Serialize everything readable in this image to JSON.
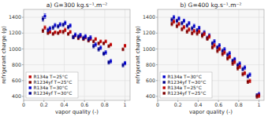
{
  "chart_data": [
    {
      "type": "scatter",
      "title": "a) G=300 kg.s⁻¹.m⁻²",
      "x_label": "vapor quality (-)",
      "y_label": "refrigerant charge (g)",
      "xlim": [
        0,
        1.05
      ],
      "ylim": [
        350,
        1500
      ],
      "xticks": [
        0,
        0.2,
        0.4,
        0.6,
        0.8,
        1
      ],
      "yticks": [
        400,
        600,
        800,
        1000,
        1200,
        1400
      ],
      "grid": true,
      "legend": "lower left",
      "marker": "square",
      "series": [
        {
          "name": "R134a T=25°C",
          "color": "#c00000",
          "x": [
            0.21,
            0.26,
            0.31,
            0.36,
            0.41,
            0.46,
            0.51,
            0.56,
            0.61,
            0.66,
            0.71,
            0.76,
            0.81,
            0.86,
            1.0
          ],
          "values": [
            1270,
            1215,
            1210,
            1220,
            1240,
            1215,
            1170,
            1160,
            1145,
            1125,
            1125,
            1095,
            1095,
            1055,
            1040
          ],
          "errors": [
            22,
            18,
            18,
            18,
            22,
            18,
            18,
            18,
            18,
            18,
            18,
            18,
            18,
            18,
            18
          ]
        },
        {
          "name": "R1234yf T=25°C",
          "color": "#7f0000",
          "x": [
            0.19,
            0.24,
            0.29,
            0.34,
            0.39,
            0.44,
            0.49,
            0.54,
            0.59,
            0.64,
            0.69,
            0.74,
            0.79,
            0.84,
            0.98
          ],
          "values": [
            1230,
            1200,
            1190,
            1200,
            1215,
            1190,
            1150,
            1135,
            1125,
            1105,
            1095,
            1070,
            1070,
            1035,
            995
          ],
          "errors": [
            22,
            18,
            18,
            18,
            22,
            18,
            18,
            18,
            18,
            18,
            18,
            18,
            18,
            18,
            18
          ]
        },
        {
          "name": "R134a T=30°C",
          "color": "#0000cc",
          "x": [
            0.21,
            0.26,
            0.31,
            0.36,
            0.41,
            0.46,
            0.51,
            0.56,
            0.61,
            0.66,
            0.71,
            0.76,
            0.81,
            0.86,
            1.0
          ],
          "values": [
            1415,
            1260,
            1300,
            1310,
            1330,
            1295,
            1180,
            1175,
            1160,
            1145,
            1055,
            1015,
            955,
            845,
            820
          ],
          "errors": [
            28,
            22,
            22,
            22,
            22,
            22,
            22,
            22,
            22,
            22,
            22,
            22,
            22,
            22,
            22
          ]
        },
        {
          "name": "R1234yf T=30°C",
          "color": "#00008b",
          "x": [
            0.19,
            0.24,
            0.29,
            0.34,
            0.39,
            0.44,
            0.49,
            0.54,
            0.59,
            0.64,
            0.69,
            0.74,
            0.79,
            0.84,
            0.98
          ],
          "values": [
            1380,
            1240,
            1270,
            1285,
            1305,
            1275,
            1150,
            1155,
            1140,
            1125,
            1035,
            995,
            940,
            830,
            795
          ],
          "errors": [
            28,
            22,
            22,
            22,
            22,
            22,
            22,
            22,
            22,
            22,
            22,
            22,
            22,
            22,
            22
          ]
        }
      ]
    },
    {
      "type": "scatter",
      "title": "b) G=400 kg.s⁻¹.m⁻²",
      "x_label": "vapor quality (-)",
      "y_label": "refrigerant charge (g)",
      "xlim": [
        0,
        1.05
      ],
      "ylim": [
        350,
        1500
      ],
      "xticks": [
        0,
        0.2,
        0.4,
        0.6,
        0.8,
        1
      ],
      "yticks": [
        400,
        600,
        800,
        1000,
        1200,
        1400
      ],
      "grid": true,
      "legend": "lower left",
      "marker": "square",
      "series": [
        {
          "name": "R134a T=30°C",
          "color": "#0000cc",
          "x": [
            0.16,
            0.21,
            0.26,
            0.31,
            0.36,
            0.41,
            0.46,
            0.51,
            0.56,
            0.61,
            0.66,
            0.71,
            0.76,
            0.81,
            0.86,
            0.91,
            1.0
          ],
          "values": [
            1400,
            1385,
            1355,
            1325,
            1290,
            1265,
            1210,
            1170,
            1095,
            1045,
            995,
            945,
            870,
            815,
            765,
            675,
            428
          ],
          "errors": [
            22,
            22,
            22,
            22,
            22,
            22,
            22,
            22,
            22,
            22,
            22,
            22,
            22,
            22,
            22,
            22,
            22
          ]
        },
        {
          "name": "R1234yf T=30°C",
          "color": "#00008b",
          "x": [
            0.14,
            0.19,
            0.24,
            0.29,
            0.34,
            0.39,
            0.44,
            0.49,
            0.54,
            0.59,
            0.64,
            0.69,
            0.74,
            0.79,
            0.84,
            0.89,
            0.98
          ],
          "values": [
            1370,
            1355,
            1325,
            1295,
            1260,
            1235,
            1180,
            1140,
            1070,
            1020,
            975,
            925,
            850,
            795,
            745,
            655,
            412
          ],
          "errors": [
            22,
            22,
            22,
            22,
            22,
            22,
            22,
            22,
            22,
            22,
            22,
            22,
            22,
            22,
            22,
            22,
            22
          ]
        },
        {
          "name": "R134a T=25°C",
          "color": "#c00000",
          "x": [
            0.16,
            0.21,
            0.26,
            0.31,
            0.36,
            0.41,
            0.46,
            0.51,
            0.56,
            0.61,
            0.66,
            0.71,
            0.76,
            0.81,
            0.86,
            0.91,
            1.0
          ],
          "values": [
            1345,
            1315,
            1275,
            1245,
            1225,
            1220,
            1190,
            1155,
            1045,
            1000,
            955,
            900,
            835,
            775,
            695,
            595,
            408
          ],
          "errors": [
            22,
            22,
            22,
            22,
            22,
            22,
            22,
            22,
            22,
            22,
            22,
            22,
            22,
            22,
            22,
            22,
            22
          ]
        },
        {
          "name": "R1234yf T=25°C",
          "color": "#7f0000",
          "x": [
            0.14,
            0.19,
            0.24,
            0.29,
            0.34,
            0.39,
            0.44,
            0.49,
            0.54,
            0.59,
            0.64,
            0.69,
            0.74,
            0.79,
            0.84,
            0.89,
            0.98
          ],
          "values": [
            1315,
            1290,
            1250,
            1220,
            1200,
            1195,
            1165,
            1130,
            1020,
            975,
            935,
            880,
            815,
            755,
            680,
            585,
            398
          ],
          "errors": [
            22,
            22,
            22,
            22,
            22,
            22,
            22,
            22,
            22,
            22,
            22,
            22,
            22,
            22,
            22,
            22,
            22
          ]
        }
      ]
    }
  ]
}
